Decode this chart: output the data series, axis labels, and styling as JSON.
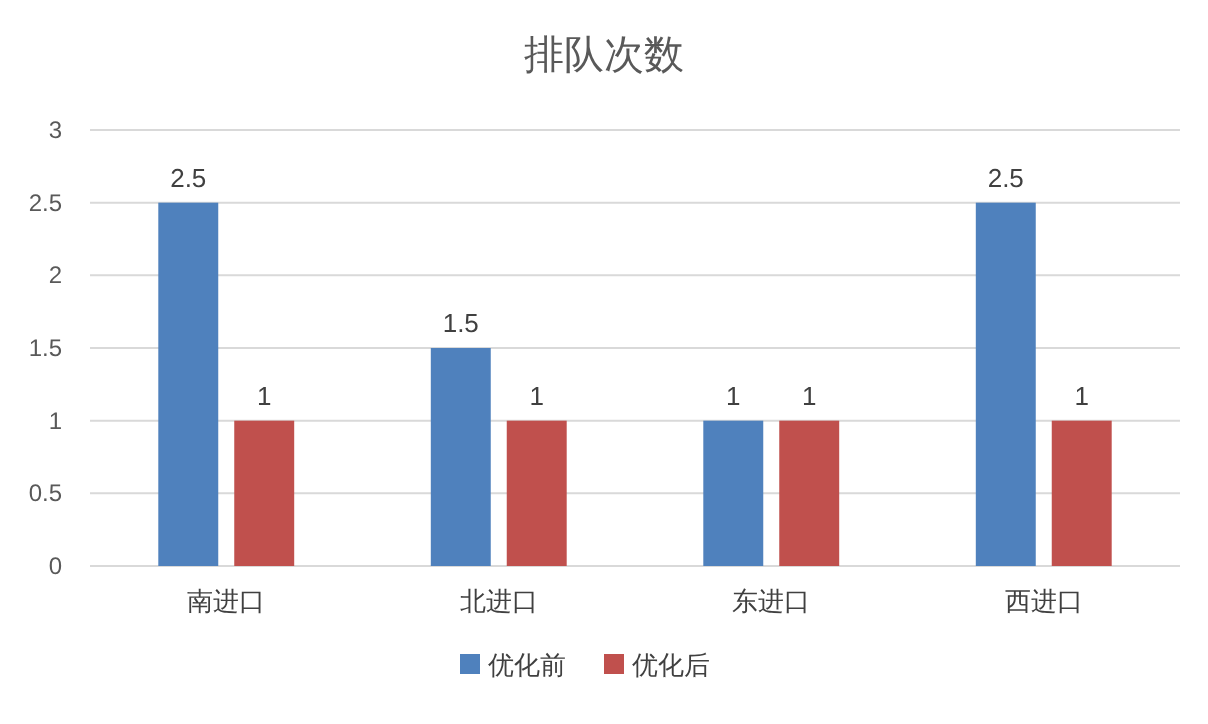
{
  "chart_data": {
    "type": "bar",
    "title": "排队次数",
    "categories": [
      "南进口",
      "北进口",
      "东进口",
      "西进口"
    ],
    "series": [
      {
        "name": "优化前",
        "color": "#4f81bd",
        "values": [
          2.5,
          1.5,
          1,
          2.5
        ]
      },
      {
        "name": "优化后",
        "color": "#c0504d",
        "values": [
          1,
          1,
          1,
          1
        ]
      }
    ],
    "ylim": [
      0,
      3
    ],
    "yticks": [
      0,
      0.5,
      1,
      1.5,
      2,
      2.5,
      3
    ],
    "grid": "y",
    "legend": "bottom",
    "data_labels": true
  }
}
